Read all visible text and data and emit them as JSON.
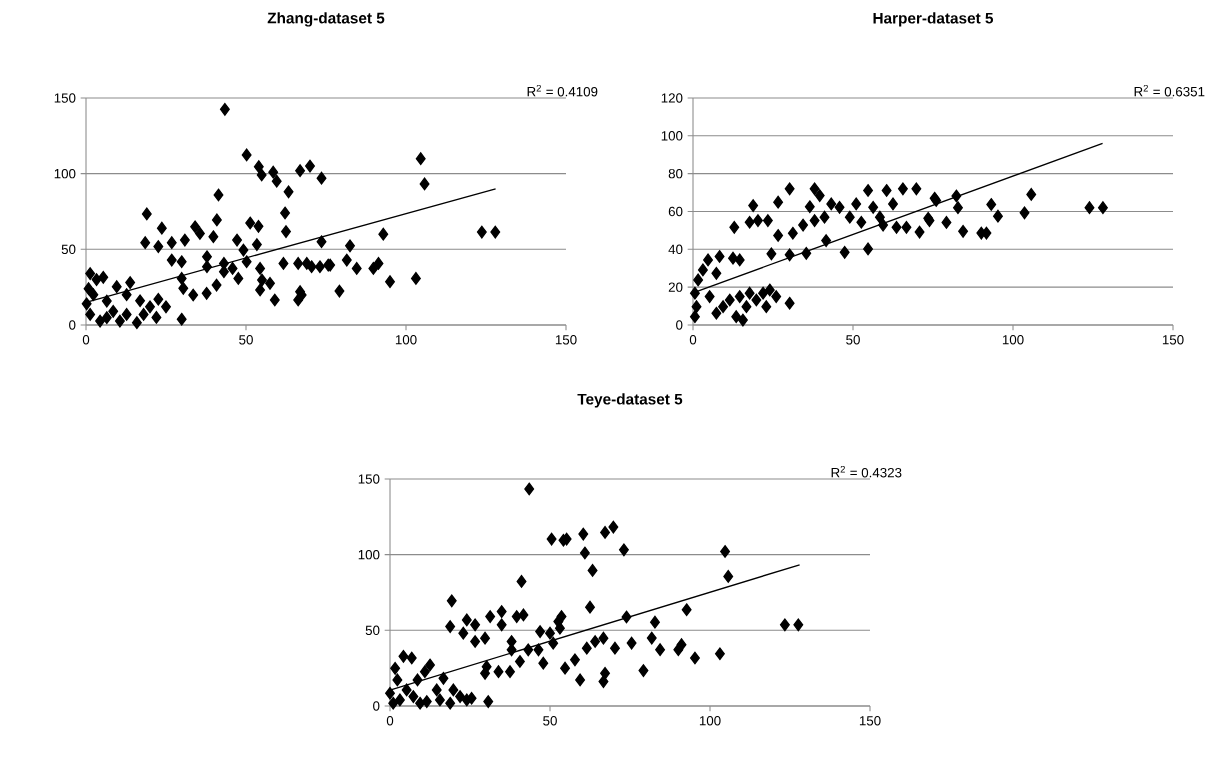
{
  "chart_data": [
    {
      "type": "scatter",
      "title": "Zhang-dataset 5",
      "xlim": [
        0,
        150
      ],
      "ylim": [
        0,
        150
      ],
      "xticks": [
        0,
        50,
        100,
        150
      ],
      "yticks": [
        0,
        50,
        100,
        150
      ],
      "grid": "y",
      "annotations": [
        "R$^{2}$ = 0.4109"
      ],
      "series": [
        {
          "type": "scatter",
          "marker": "diamond",
          "color": "#000000",
          "x": [
            43.4,
            50.2,
            54,
            54.9,
            58.5,
            59.6,
            63.3,
            62.2,
            62.5,
            66.9,
            70,
            73.6,
            41.4,
            40.9,
            19,
            23.7,
            18.5,
            22.6,
            26.8,
            30.9,
            34.1,
            35.6,
            39.8,
            47.2,
            49.2,
            50.2,
            51.3,
            53.9,
            53.4,
            26.8,
            29.9,
            37.8,
            37.8,
            43.1,
            45.8,
            43.1,
            47.6,
            29.9,
            30.4,
            33.5,
            37.7,
            40.8,
            54.4,
            55,
            57.5,
            54.4,
            59,
            61.7,
            66.3,
            69,
            73.1,
            73.6,
            76.3,
            66.3,
            66.9,
            29.9,
            1.3,
            5.4,
            13.8,
            12.7,
            16.9,
            22.6,
            20,
            25,
            2.3,
            6.5,
            1.3,
            4.4,
            10.6,
            15.9,
            18,
            22,
            0.2,
            8.5,
            12.7,
            6.5,
            0.8,
            3.3,
            9.6,
            104.6,
            105.8,
            123.7,
            127.9,
            92.9,
            82.5,
            70.5,
            75.7,
            81.5,
            84.6,
            89.8,
            91.4,
            95,
            103.1,
            79.2,
            67.4
          ],
          "values": [
            142.5,
            112.4,
            104.6,
            99.1,
            101,
            95,
            88,
            74,
            61.7,
            102,
            105,
            97,
            85.9,
            69.4,
            73.4,
            64,
            54.4,
            51.8,
            54.4,
            56.1,
            64.9,
            60.5,
            58.3,
            56.1,
            49.5,
            41.8,
            67.4,
            65.2,
            53.1,
            42.9,
            41.8,
            45.1,
            38.5,
            40.7,
            37.4,
            35.2,
            30.8,
            30.8,
            24.2,
            19.8,
            20.9,
            26.4,
            37.4,
            29.7,
            27.5,
            23.1,
            16.5,
            40.7,
            40.7,
            40.7,
            38.5,
            55,
            39.6,
            16.5,
            22,
            3.8,
            34,
            31.5,
            28,
            20,
            16,
            17,
            12,
            12,
            20,
            15.8,
            7,
            2.6,
            2.6,
            1.5,
            7,
            5,
            14,
            9,
            7,
            4.8,
            24,
            30,
            25.3,
            109.9,
            93.2,
            61.4,
            61.4,
            60,
            52.3,
            38.5,
            39.6,
            42.9,
            37.4,
            37.4,
            40.7,
            28.6,
            30.8,
            22.4,
            19.8
          ]
        },
        {
          "type": "line",
          "marker": "none",
          "color": "#000000",
          "x": [
            0,
            128
          ],
          "values": [
            15,
            90
          ]
        }
      ]
    },
    {
      "type": "scatter",
      "title": "Harper-dataset 5",
      "xlim": [
        0,
        150
      ],
      "ylim": [
        0,
        120
      ],
      "xticks": [
        0,
        50,
        100,
        150
      ],
      "yticks": [
        0,
        20,
        40,
        60,
        80,
        100,
        120
      ],
      "grid": "y",
      "annotations": [
        "R$^{2}$ = 0.6351"
      ],
      "series": [
        {
          "type": "scatter",
          "marker": "diamond",
          "color": "#000000",
          "x": [
            0.6,
            1.1,
            0.6,
            1.6,
            3.1,
            4.7,
            7.3,
            8.3,
            5.2,
            7.3,
            9.4,
            11.5,
            13.5,
            12.5,
            14.6,
            15.6,
            16.7,
            17.7,
            14.6,
            19.8,
            21.9,
            24,
            26,
            22.9,
            30.2,
            12.9,
            17.7,
            18.8,
            20.3,
            23.4,
            24.5,
            26.6,
            26.6,
            30.2,
            30.2,
            31.2,
            34.4,
            35.4,
            36.5,
            38,
            38,
            39.6,
            41.6,
            41.1,
            43.2,
            45.8,
            47.4,
            49,
            51,
            52.6,
            54.7,
            54.7,
            56.3,
            58.4,
            60.5,
            59.4,
            62.5,
            63.6,
            65.6,
            66.7,
            69.8,
            70.8,
            73.9,
            76,
            73.5,
            75.5,
            79.2,
            82.3,
            82.8,
            84.4,
            90.1,
            91.7,
            93.2,
            95.3,
            103.6,
            105.7,
            123.9,
            128.1
          ],
          "values": [
            4.4,
            9.7,
            16.8,
            23.8,
            29.1,
            34.4,
            27.3,
            36.2,
            15,
            6.2,
            9.7,
            13.2,
            4.4,
            35.3,
            34.4,
            2.6,
            9.7,
            16.8,
            15,
            13.2,
            16.8,
            18.5,
            15,
            9.7,
            11.5,
            51.6,
            54.3,
            63.1,
            55.2,
            55.2,
            37.6,
            47.3,
            64.9,
            72,
            37.1,
            48.5,
            52.8,
            37.9,
            62.5,
            72,
            55.2,
            68.4,
            44.6,
            57,
            64,
            62.2,
            38.4,
            57,
            64,
            54.3,
            71.1,
            40.2,
            62.2,
            57,
            71.1,
            52.8,
            64,
            51.6,
            72,
            51.6,
            72,
            49.1,
            55.2,
            65.8,
            56.4,
            67,
            54.2,
            68.2,
            62,
            49.5,
            48.6,
            48.6,
            63.7,
            57.5,
            59.3,
            69,
            62,
            62
          ]
        },
        {
          "type": "line",
          "marker": "none",
          "color": "#000000",
          "x": [
            0,
            128
          ],
          "values": [
            17,
            96
          ]
        }
      ]
    },
    {
      "type": "scatter",
      "title": "Teye-dataset 5",
      "xlim": [
        0,
        150
      ],
      "ylim": [
        0,
        150
      ],
      "xticks": [
        0,
        50,
        100,
        150
      ],
      "yticks": [
        0,
        50,
        100,
        150
      ],
      "grid": "y",
      "annotations": [
        "R$^{2}$ = 0.4323"
      ],
      "series": [
        {
          "type": "scatter",
          "marker": "diamond",
          "color": "#000000",
          "x": [
            43.5,
            50.5,
            54.2,
            55.2,
            60.4,
            60.9,
            63.3,
            62.5,
            67.2,
            69.8,
            41.1,
            19.3,
            18.8,
            22.9,
            24,
            26.6,
            26.6,
            29.7,
            31.3,
            34.9,
            34.9,
            39.6,
            41.7,
            38,
            38,
            40.6,
            43.2,
            46.4,
            46.9,
            47.9,
            50,
            51,
            52.6,
            53.6,
            53.1,
            54.7,
            57.8,
            59.4,
            61.5,
            64.1,
            66.7,
            66.7,
            67.2,
            70.3,
            29.7,
            30.2,
            33.9,
            37.5,
            30.7,
            4.2,
            6.8,
            1.6,
            12.5,
            10.9,
            16.7,
            8.6,
            2.3,
            0,
            3.1,
            7.3,
            11.5,
            15.6,
            19.8,
            21.9,
            24,
            25.5,
            1,
            14.6,
            5.2,
            9.4,
            18.8,
            73.1,
            104.7,
            105.7,
            92.7,
            73.9,
            82.8,
            81.8,
            75.5,
            84.4,
            90.1,
            91.1,
            95.3,
            103.1,
            79.2,
            123.4,
            127.6
          ],
          "values": [
            143.4,
            110.3,
            109.5,
            110.3,
            113.6,
            101.1,
            89.6,
            65.3,
            114.7,
            118.2,
            82.3,
            69.5,
            52.5,
            48.1,
            56.9,
            53.6,
            42.6,
            44.8,
            59.1,
            62.4,
            53.6,
            59.1,
            60.2,
            42.6,
            37.1,
            29.4,
            37.1,
            37.1,
            49.2,
            28.3,
            48.1,
            41.5,
            55.8,
            59.1,
            51.4,
            25,
            30.5,
            17.2,
            38.2,
            42.6,
            44.8,
            16.1,
            21.6,
            38.2,
            21.6,
            26,
            22.7,
            22.7,
            2.9,
            32.8,
            31.7,
            24.9,
            27.1,
            22.7,
            18.3,
            17.2,
            17.2,
            8.4,
            4,
            6.2,
            2.9,
            4,
            10.6,
            6.2,
            4,
            5.1,
            1.8,
            10.6,
            10.6,
            1.8,
            1.8,
            103.2,
            102.1,
            85.6,
            63.6,
            58.8,
            55.4,
            44.9,
            41.6,
            37.2,
            37.2,
            40.5,
            31.7,
            34.5,
            23.4,
            53.6,
            53.6
          ]
        },
        {
          "type": "line",
          "marker": "none",
          "color": "#000000",
          "x": [
            0,
            128
          ],
          "values": [
            10.5,
            93.3
          ]
        }
      ]
    }
  ]
}
